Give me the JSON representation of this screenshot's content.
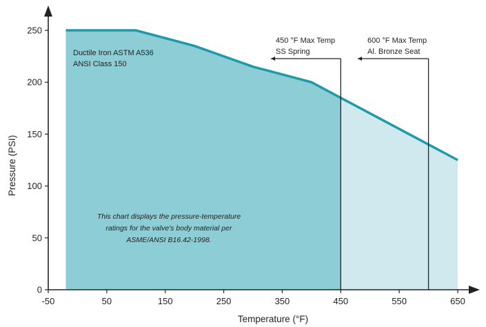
{
  "chart_data": {
    "type": "area",
    "xlabel": "Temperature (°F)",
    "ylabel": "Pressure (PSI)",
    "xlim": [
      -50,
      650
    ],
    "ylim": [
      0,
      250
    ],
    "x_ticks": [
      -50,
      50,
      150,
      250,
      350,
      450,
      550,
      650
    ],
    "y_ticks": [
      0,
      50,
      100,
      150,
      200,
      250
    ],
    "series": [
      {
        "x": [
          -20,
          100,
          200,
          300,
          400,
          500,
          600,
          650
        ],
        "y": [
          250,
          250,
          235,
          215,
          200,
          170,
          140,
          125
        ]
      }
    ],
    "colors": {
      "line": "#1e9aa8",
      "area_dark": "#8ccdd6",
      "area_light": "#cfe9ee",
      "axis": "#222222"
    },
    "grid": false,
    "series_label": [
      "Ductile Iron ASTM A536",
      "ANSI Class 150"
    ],
    "limits": [
      {
        "x": 450,
        "lines": [
          "450 °F Max Temp",
          "SS Spring"
        ]
      },
      {
        "x": 600,
        "lines": [
          "600 °F Max Temp",
          "Al. Bronze Seat"
        ]
      }
    ],
    "note": [
      "This chart displays the pressure-temperature",
      "ratings  for the valve's body material per",
      "ASME/ANSI B16.42-1998."
    ]
  }
}
